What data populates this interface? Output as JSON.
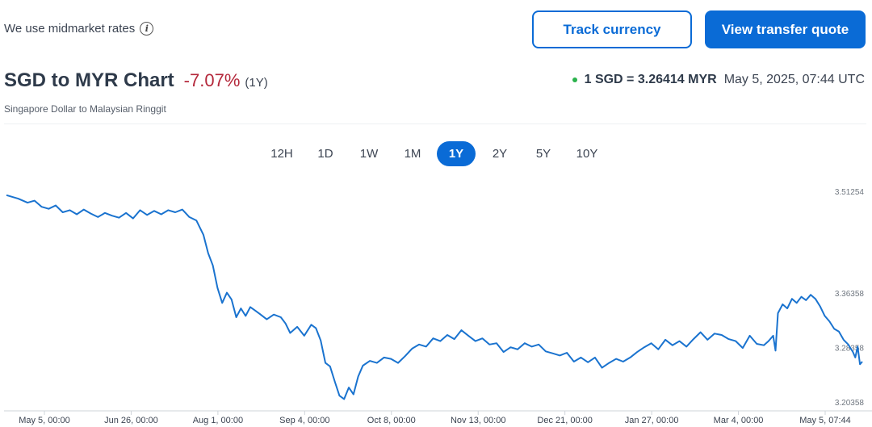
{
  "header": {
    "midmarket_text": "We use midmarket rates",
    "info_icon": "info-icon",
    "track_label": "Track currency",
    "quote_label": "View transfer quote"
  },
  "summary": {
    "title": "SGD to MYR Chart",
    "change": "-7.07%",
    "period": "(1Y)",
    "subtitle": "Singapore Dollar to Malaysian Ringgit",
    "rate": "1 SGD = 3.26414 MYR",
    "timestamp": "May 5, 2025, 07:44 UTC"
  },
  "colors": {
    "accent": "#0a6bd6",
    "negative": "#b4283b",
    "live": "#2bb24c",
    "line": "#1a73cf"
  },
  "ranges": [
    "12H",
    "1D",
    "1W",
    "1M",
    "1Y",
    "2Y",
    "5Y",
    "10Y"
  ],
  "active_range": "1Y",
  "chart_data": {
    "type": "line",
    "y_ticks": [
      "3.51254",
      "3.36358",
      "3.28358",
      "3.20358"
    ],
    "x_ticks": [
      "May 5, 00:00",
      "Jun 26, 00:00",
      "Aug 1, 00:00",
      "Sep 4, 00:00",
      "Oct 8, 00:00",
      "Nov 13, 00:00",
      "Dec 21, 00:00",
      "Jan 27, 00:00",
      "Mar 4, 00:00",
      "May 5, 07:44"
    ],
    "ylim": [
      3.20358,
      3.51254
    ],
    "x_days_span": 365,
    "series": [
      {
        "points": [
          [
            0,
            3.508
          ],
          [
            5,
            3.503
          ],
          [
            9,
            3.497
          ],
          [
            12,
            3.5
          ],
          [
            15,
            3.491
          ],
          [
            18,
            3.488
          ],
          [
            21,
            3.493
          ],
          [
            24,
            3.483
          ],
          [
            27,
            3.486
          ],
          [
            30,
            3.48
          ],
          [
            33,
            3.487
          ],
          [
            36,
            3.481
          ],
          [
            39,
            3.476
          ],
          [
            42,
            3.482
          ],
          [
            45,
            3.478
          ],
          [
            48,
            3.475
          ],
          [
            51,
            3.482
          ],
          [
            54,
            3.474
          ],
          [
            57,
            3.486
          ],
          [
            60,
            3.479
          ],
          [
            63,
            3.485
          ],
          [
            66,
            3.48
          ],
          [
            69,
            3.486
          ],
          [
            72,
            3.483
          ],
          [
            75,
            3.487
          ],
          [
            78,
            3.476
          ],
          [
            81,
            3.471
          ],
          [
            84,
            3.45
          ],
          [
            86,
            3.423
          ],
          [
            88,
            3.405
          ],
          [
            90,
            3.372
          ],
          [
            92,
            3.35
          ],
          [
            94,
            3.365
          ],
          [
            96,
            3.355
          ],
          [
            98,
            3.329
          ],
          [
            100,
            3.342
          ],
          [
            102,
            3.331
          ],
          [
            104,
            3.344
          ],
          [
            106,
            3.339
          ],
          [
            108,
            3.334
          ],
          [
            111,
            3.326
          ],
          [
            114,
            3.333
          ],
          [
            117,
            3.329
          ],
          [
            119,
            3.32
          ],
          [
            121,
            3.306
          ],
          [
            124,
            3.315
          ],
          [
            127,
            3.302
          ],
          [
            130,
            3.318
          ],
          [
            132,
            3.313
          ],
          [
            134,
            3.295
          ],
          [
            136,
            3.262
          ],
          [
            138,
            3.257
          ],
          [
            140,
            3.235
          ],
          [
            142,
            3.214
          ],
          [
            144,
            3.209
          ],
          [
            146,
            3.226
          ],
          [
            148,
            3.216
          ],
          [
            150,
            3.242
          ],
          [
            152,
            3.258
          ],
          [
            155,
            3.265
          ],
          [
            158,
            3.262
          ],
          [
            161,
            3.27
          ],
          [
            164,
            3.268
          ],
          [
            167,
            3.262
          ],
          [
            170,
            3.272
          ],
          [
            173,
            3.283
          ],
          [
            176,
            3.289
          ],
          [
            179,
            3.286
          ],
          [
            182,
            3.298
          ],
          [
            185,
            3.294
          ],
          [
            188,
            3.303
          ],
          [
            191,
            3.297
          ],
          [
            194,
            3.31
          ],
          [
            197,
            3.302
          ],
          [
            200,
            3.294
          ],
          [
            203,
            3.298
          ],
          [
            206,
            3.289
          ],
          [
            209,
            3.291
          ],
          [
            212,
            3.278
          ],
          [
            215,
            3.285
          ],
          [
            218,
            3.282
          ],
          [
            221,
            3.291
          ],
          [
            224,
            3.286
          ],
          [
            227,
            3.289
          ],
          [
            230,
            3.279
          ],
          [
            233,
            3.276
          ],
          [
            236,
            3.273
          ],
          [
            239,
            3.277
          ],
          [
            242,
            3.264
          ],
          [
            245,
            3.27
          ],
          [
            248,
            3.263
          ],
          [
            251,
            3.27
          ],
          [
            254,
            3.255
          ],
          [
            257,
            3.262
          ],
          [
            260,
            3.268
          ],
          [
            263,
            3.264
          ],
          [
            266,
            3.27
          ],
          [
            269,
            3.278
          ],
          [
            272,
            3.285
          ],
          [
            275,
            3.291
          ],
          [
            278,
            3.282
          ],
          [
            281,
            3.296
          ],
          [
            284,
            3.288
          ],
          [
            287,
            3.294
          ],
          [
            290,
            3.286
          ],
          [
            293,
            3.297
          ],
          [
            296,
            3.307
          ],
          [
            299,
            3.296
          ],
          [
            302,
            3.305
          ],
          [
            305,
            3.303
          ],
          [
            308,
            3.297
          ],
          [
            311,
            3.294
          ],
          [
            314,
            3.284
          ],
          [
            317,
            3.302
          ],
          [
            320,
            3.29
          ],
          [
            323,
            3.288
          ],
          [
            325,
            3.294
          ],
          [
            327,
            3.302
          ],
          [
            328,
            3.28
          ],
          [
            329,
            3.335
          ],
          [
            331,
            3.348
          ],
          [
            333,
            3.342
          ],
          [
            335,
            3.356
          ],
          [
            337,
            3.35
          ],
          [
            339,
            3.359
          ],
          [
            341,
            3.354
          ],
          [
            343,
            3.362
          ],
          [
            345,
            3.356
          ],
          [
            347,
            3.345
          ],
          [
            349,
            3.331
          ],
          [
            351,
            3.323
          ],
          [
            353,
            3.312
          ],
          [
            355,
            3.308
          ],
          [
            357,
            3.296
          ],
          [
            359,
            3.289
          ],
          [
            361,
            3.278
          ],
          [
            362,
            3.27
          ],
          [
            363,
            3.286
          ],
          [
            364,
            3.26
          ],
          [
            365,
            3.264
          ]
        ]
      }
    ]
  }
}
